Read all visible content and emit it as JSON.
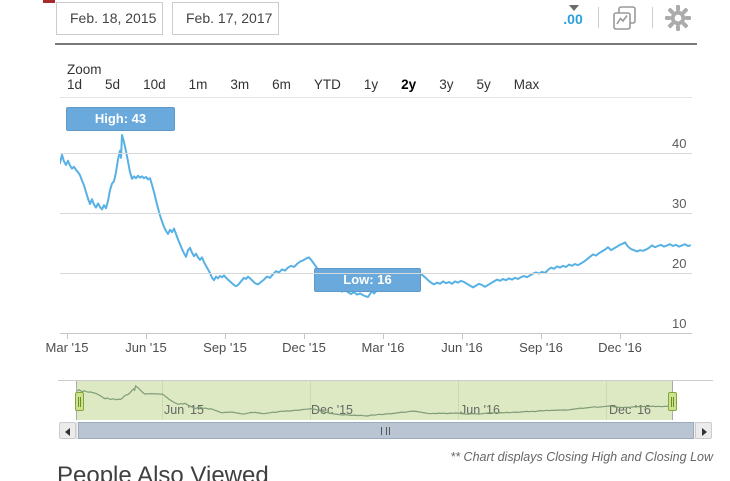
{
  "header": {
    "start_date": "Feb. 18, 2015",
    "end_date": "Feb. 17, 2017",
    "decimal_icon_label": ".00"
  },
  "toolbar": {
    "zoom_label": "Zoom",
    "ranges": [
      "1d",
      "5d",
      "10d",
      "1m",
      "3m",
      "6m",
      "YTD",
      "1y",
      "2y",
      "3y",
      "5y",
      "Max"
    ],
    "active_range": "2y"
  },
  "chart_data": {
    "type": "line",
    "title": "",
    "high_annotation": "High: 43",
    "low_annotation": "Low: 16",
    "high_value": 43,
    "low_value": 16,
    "ylim": [
      10,
      50
    ],
    "y_ticks": [
      40,
      30,
      20,
      10
    ],
    "x_tick_labels": [
      "Mar '15",
      "Jun '15",
      "Sep '15",
      "Dec '15",
      "Mar '16",
      "Jun '16",
      "Sep '16",
      "Dec '16"
    ],
    "line_color": "#58b1e4",
    "grid": true,
    "legend": "none",
    "series": [
      {
        "name": "Closing High and Closing Low",
        "points": [
          [
            0,
            38.3
          ],
          [
            2,
            39.7
          ],
          [
            4,
            38.6
          ],
          [
            6,
            38.0
          ],
          [
            8,
            38.7
          ],
          [
            10,
            37.9
          ],
          [
            12,
            37.4
          ],
          [
            14,
            37.7
          ],
          [
            16,
            37.2
          ],
          [
            18,
            36.8
          ],
          [
            20,
            36.3
          ],
          [
            22,
            35.4
          ],
          [
            24,
            34.6
          ],
          [
            26,
            33.5
          ],
          [
            28,
            32.4
          ],
          [
            30,
            31.5
          ],
          [
            32,
            32.3
          ],
          [
            34,
            31.4
          ],
          [
            36,
            30.9
          ],
          [
            38,
            31.6
          ],
          [
            40,
            31.0
          ],
          [
            42,
            30.6
          ],
          [
            44,
            31.3
          ],
          [
            46,
            30.8
          ],
          [
            48,
            32.0
          ],
          [
            50,
            33.8
          ],
          [
            52,
            34.9
          ],
          [
            54,
            35.3
          ],
          [
            56,
            36.8
          ],
          [
            58,
            38.9
          ],
          [
            60,
            40.4
          ],
          [
            61,
            39.2
          ],
          [
            62,
            43.0
          ],
          [
            64,
            41.8
          ],
          [
            66,
            40.3
          ],
          [
            68,
            38.6
          ],
          [
            70,
            36.8
          ],
          [
            72,
            35.7
          ],
          [
            74,
            36.1
          ],
          [
            76,
            35.8
          ],
          [
            78,
            36.2
          ],
          [
            80,
            35.9
          ],
          [
            82,
            36.1
          ],
          [
            84,
            35.8
          ],
          [
            86,
            36.0
          ],
          [
            88,
            35.6
          ],
          [
            90,
            35.8
          ],
          [
            92,
            34.7
          ],
          [
            94,
            33.5
          ],
          [
            96,
            32.1
          ],
          [
            98,
            30.8
          ],
          [
            100,
            29.6
          ],
          [
            102,
            28.6
          ],
          [
            104,
            27.7
          ],
          [
            106,
            27.0
          ],
          [
            108,
            26.5
          ],
          [
            110,
            27.2
          ],
          [
            112,
            26.8
          ],
          [
            114,
            27.4
          ],
          [
            116,
            26.5
          ],
          [
            118,
            25.6
          ],
          [
            120,
            24.8
          ],
          [
            122,
            24.0
          ],
          [
            124,
            23.3
          ],
          [
            126,
            22.7
          ],
          [
            128,
            23.8
          ],
          [
            130,
            24.2
          ],
          [
            132,
            23.4
          ],
          [
            134,
            22.8
          ],
          [
            136,
            23.2
          ],
          [
            138,
            22.6
          ],
          [
            140,
            22.2
          ],
          [
            142,
            22.6
          ],
          [
            144,
            21.8
          ],
          [
            146,
            21.2
          ],
          [
            148,
            20.6
          ],
          [
            150,
            20.0
          ],
          [
            152,
            19.2
          ],
          [
            154,
            18.8
          ],
          [
            156,
            19.4
          ],
          [
            158,
            19.1
          ],
          [
            160,
            19.5
          ],
          [
            162,
            19.3
          ],
          [
            164,
            19.6
          ],
          [
            166,
            19.2
          ],
          [
            168,
            18.9
          ],
          [
            170,
            18.6
          ],
          [
            172,
            18.3
          ],
          [
            174,
            18.0
          ],
          [
            176,
            17.8
          ],
          [
            178,
            18.0
          ],
          [
            180,
            18.4
          ],
          [
            182,
            18.8
          ],
          [
            184,
            19.2
          ],
          [
            186,
            19.0
          ],
          [
            188,
            19.4
          ],
          [
            190,
            19.1
          ],
          [
            192,
            18.8
          ],
          [
            195,
            18.3
          ],
          [
            198,
            18.1
          ],
          [
            201,
            18.5
          ],
          [
            204,
            18.9
          ],
          [
            207,
            19.4
          ],
          [
            210,
            19.2
          ],
          [
            213,
            19.8
          ],
          [
            216,
            20.3
          ],
          [
            219,
            20.1
          ],
          [
            222,
            20.6
          ],
          [
            225,
            20.4
          ],
          [
            228,
            20.9
          ],
          [
            231,
            21.2
          ],
          [
            234,
            21.0
          ],
          [
            237,
            21.5
          ],
          [
            240,
            21.9
          ],
          [
            243,
            22.1
          ],
          [
            246,
            22.4
          ],
          [
            249,
            22.6
          ],
          [
            252,
            22.0
          ],
          [
            255,
            21.3
          ],
          [
            258,
            20.6
          ],
          [
            261,
            19.9
          ],
          [
            264,
            19.3
          ],
          [
            267,
            18.7
          ],
          [
            270,
            18.2
          ],
          [
            273,
            17.8
          ],
          [
            276,
            17.4
          ],
          [
            279,
            17.1
          ],
          [
            282,
            16.9
          ],
          [
            285,
            17.2
          ],
          [
            288,
            16.8
          ],
          [
            291,
            16.5
          ],
          [
            294,
            16.8
          ],
          [
            297,
            16.4
          ],
          [
            300,
            16.6
          ],
          [
            303,
            16.3
          ],
          [
            306,
            16.1
          ],
          [
            308,
            16.0
          ],
          [
            310,
            16.5
          ],
          [
            312,
            17.0
          ],
          [
            314,
            16.6
          ],
          [
            317,
            17.1
          ],
          [
            320,
            17.5
          ],
          [
            323,
            17.3
          ],
          [
            326,
            17.7
          ],
          [
            329,
            18.1
          ],
          [
            332,
            17.9
          ],
          [
            335,
            18.3
          ],
          [
            338,
            18.7
          ],
          [
            341,
            19.1
          ],
          [
            344,
            19.5
          ],
          [
            347,
            19.3
          ],
          [
            350,
            19.8
          ],
          [
            353,
            20.2
          ],
          [
            356,
            20.4
          ],
          [
            359,
            20.1
          ],
          [
            362,
            19.7
          ],
          [
            365,
            19.3
          ],
          [
            368,
            18.8
          ],
          [
            371,
            18.4
          ],
          [
            374,
            18.1
          ],
          [
            377,
            18.4
          ],
          [
            380,
            18.2
          ],
          [
            383,
            18.6
          ],
          [
            386,
            18.3
          ],
          [
            389,
            18.5
          ],
          [
            392,
            18.2
          ],
          [
            395,
            18.6
          ],
          [
            398,
            18.4
          ],
          [
            401,
            18.7
          ],
          [
            404,
            18.5
          ],
          [
            407,
            18.2
          ],
          [
            410,
            17.9
          ],
          [
            413,
            17.6
          ],
          [
            416,
            17.9
          ],
          [
            419,
            18.2
          ],
          [
            422,
            18.0
          ],
          [
            425,
            17.7
          ],
          [
            428,
            18.0
          ],
          [
            431,
            18.3
          ],
          [
            434,
            18.6
          ],
          [
            437,
            18.9
          ],
          [
            440,
            18.7
          ],
          [
            443,
            19.0
          ],
          [
            446,
            18.8
          ],
          [
            449,
            19.1
          ],
          [
            452,
            18.9
          ],
          [
            455,
            19.2
          ],
          [
            458,
            19.0
          ],
          [
            461,
            19.3
          ],
          [
            464,
            19.5
          ],
          [
            467,
            19.3
          ],
          [
            470,
            19.6
          ],
          [
            473,
            19.9
          ],
          [
            476,
            20.1
          ],
          [
            479,
            19.9
          ],
          [
            482,
            20.2
          ],
          [
            485,
            20.0
          ],
          [
            488,
            20.5
          ],
          [
            491,
            20.9
          ],
          [
            494,
            20.7
          ],
          [
            497,
            21.1
          ],
          [
            500,
            20.9
          ],
          [
            503,
            21.2
          ],
          [
            506,
            21.0
          ],
          [
            509,
            21.4
          ],
          [
            512,
            21.2
          ],
          [
            515,
            21.5
          ],
          [
            518,
            21.3
          ],
          [
            521,
            21.6
          ],
          [
            524,
            21.9
          ],
          [
            527,
            22.3
          ],
          [
            530,
            22.7
          ],
          [
            533,
            23.1
          ],
          [
            536,
            22.9
          ],
          [
            539,
            23.3
          ],
          [
            542,
            23.6
          ],
          [
            545,
            23.9
          ],
          [
            548,
            24.3
          ],
          [
            551,
            23.8
          ],
          [
            554,
            24.1
          ],
          [
            557,
            24.4
          ],
          [
            560,
            24.7
          ],
          [
            563,
            24.9
          ],
          [
            565,
            25.1
          ],
          [
            568,
            24.4
          ],
          [
            571,
            24.0
          ],
          [
            574,
            23.8
          ],
          [
            577,
            23.6
          ],
          [
            580,
            23.8
          ],
          [
            583,
            23.7
          ],
          [
            586,
            23.9
          ],
          [
            589,
            24.2
          ],
          [
            592,
            24.6
          ],
          [
            595,
            24.3
          ],
          [
            598,
            24.5
          ],
          [
            601,
            24.7
          ],
          [
            604,
            24.4
          ],
          [
            607,
            24.6
          ],
          [
            610,
            24.8
          ],
          [
            613,
            24.5
          ],
          [
            616,
            24.7
          ],
          [
            619,
            24.4
          ],
          [
            622,
            24.6
          ],
          [
            625,
            24.8
          ],
          [
            628,
            24.5
          ],
          [
            630,
            24.6
          ]
        ]
      }
    ]
  },
  "navigator": {
    "labels": [
      "Jun '15",
      "Dec '15",
      "Jun '16",
      "Dec '16"
    ],
    "fill_color": "#dde9c2",
    "line_color": "#7f9b78"
  },
  "scrollbar": {
    "grip": "|||"
  },
  "footer": {
    "note": "** Chart displays Closing High and Closing Low"
  },
  "below_section": {
    "heading": "People Also Viewed"
  }
}
